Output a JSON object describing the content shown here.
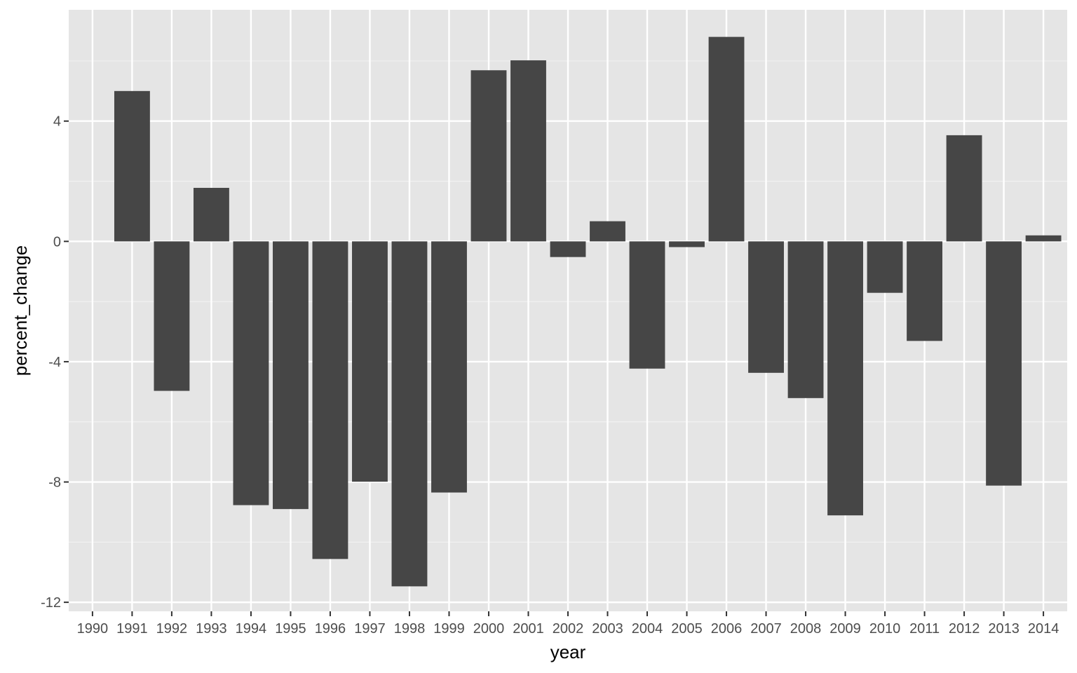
{
  "chart_data": {
    "type": "bar",
    "title": "",
    "xlabel": "year",
    "ylabel": "percent_change",
    "categories": [
      "1990",
      "1991",
      "1992",
      "1993",
      "1994",
      "1995",
      "1996",
      "1997",
      "1998",
      "1999",
      "2000",
      "2001",
      "2002",
      "2003",
      "2004",
      "2005",
      "2006",
      "2007",
      "2008",
      "2009",
      "2010",
      "2011",
      "2012",
      "2013",
      "2014"
    ],
    "values": [
      null,
      5.0,
      -4.97,
      1.78,
      -8.77,
      -8.9,
      -10.56,
      -7.99,
      -11.47,
      -8.35,
      5.69,
      6.02,
      -0.52,
      0.67,
      -4.23,
      -0.19,
      6.8,
      -4.37,
      -5.21,
      -9.11,
      -1.71,
      -3.31,
      3.53,
      -8.12,
      0.2
    ],
    "ylim": [
      -12.3,
      7.7
    ],
    "yticks": [
      4,
      0,
      -4,
      -8,
      -12
    ],
    "ytick_labels": [
      "4",
      "0",
      "-4",
      "-8",
      "-12"
    ],
    "grid": true,
    "legend": "none",
    "colors": {
      "bar": "#464646",
      "panel": "#e5e5e5",
      "grid_major": "#ffffff",
      "grid_minor": "#f1f1f1",
      "tick_text": "#4d4d4d",
      "axis_title": "#000000"
    }
  }
}
